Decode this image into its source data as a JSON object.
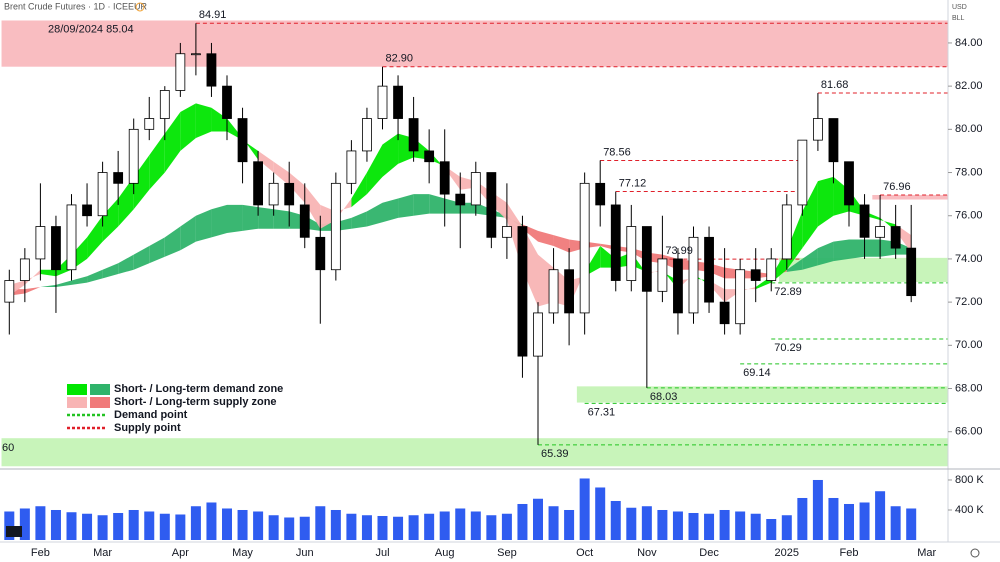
{
  "chart_data": {
    "type": "candlestick",
    "title": "Brent Crude Futures · 1D · ICEEUR",
    "currency": "USD",
    "unit": "BLL",
    "categories": [
      null,
      null,
      "Feb",
      null,
      null,
      null,
      "Mar",
      null,
      null,
      null,
      null,
      "Apr",
      null,
      null,
      null,
      "May",
      null,
      null,
      null,
      "Jun",
      null,
      null,
      null,
      null,
      "Jul",
      null,
      null,
      null,
      "Aug",
      null,
      null,
      null,
      "Sep",
      null,
      null,
      null,
      null,
      "Oct",
      null,
      null,
      null,
      "Nov",
      null,
      null,
      null,
      "Dec",
      null,
      null,
      null,
      null,
      "2025",
      null,
      null,
      null,
      "Feb",
      null,
      null,
      null,
      null,
      "Mar"
    ],
    "open": [
      72.0,
      73.0,
      74.0,
      75.5,
      73.5,
      76.5,
      76.0,
      78.0,
      77.5,
      80.0,
      80.5,
      81.8,
      83.5,
      83.5,
      82.0,
      80.5,
      78.5,
      76.5,
      77.5,
      76.5,
      75.0,
      73.5,
      77.5,
      79.0,
      80.5,
      82.0,
      80.5,
      79.0,
      78.5,
      77.0,
      76.5,
      78.0,
      75.0,
      75.5,
      69.5,
      71.5,
      73.5,
      71.5,
      77.5,
      76.5,
      73.0,
      75.5,
      72.5,
      74.0,
      71.5,
      75.0,
      72.0,
      71.0,
      73.5,
      73.0,
      74.0,
      76.5,
      79.5,
      80.5,
      78.5,
      76.5,
      75.0,
      75.5,
      74.5,
      null
    ],
    "high": [
      73.5,
      74.5,
      77.5,
      76.0,
      77.0,
      77.5,
      78.5,
      79.0,
      80.5,
      81.5,
      82.0,
      84.0,
      84.91,
      84.0,
      82.5,
      81.0,
      79.0,
      78.0,
      78.5,
      77.5,
      76.0,
      78.0,
      79.5,
      81.0,
      82.9,
      82.5,
      81.5,
      80.0,
      80.0,
      78.0,
      78.5,
      78.0,
      77.5,
      76.0,
      72.0,
      74.5,
      74.5,
      78.0,
      78.56,
      77.12,
      76.5,
      75.5,
      76.0,
      74.5,
      75.5,
      75.5,
      74.5,
      74.0,
      74.5,
      74.5,
      77.0,
      79.5,
      81.68,
      80.5,
      78.5,
      77.0,
      76.96,
      76.5,
      76.5,
      null
    ],
    "low": [
      70.5,
      72.0,
      73.0,
      71.5,
      73.0,
      75.5,
      75.5,
      76.5,
      77.0,
      79.5,
      79.5,
      81.5,
      82.5,
      81.5,
      79.5,
      77.5,
      76.0,
      76.0,
      75.5,
      74.5,
      71.0,
      73.0,
      77.0,
      78.5,
      80.0,
      79.5,
      78.5,
      77.5,
      75.5,
      74.5,
      76.0,
      74.5,
      74.0,
      68.5,
      65.39,
      71.0,
      70.0,
      70.5,
      75.5,
      72.5,
      72.5,
      68.03,
      72.0,
      70.5,
      71.0,
      71.5,
      70.5,
      70.5,
      72.0,
      72.5,
      73.5,
      76.0,
      79.0,
      77.5,
      75.5,
      74.0,
      74.0,
      74.0,
      72.0,
      null
    ],
    "close": [
      73.0,
      74.0,
      75.5,
      73.5,
      76.5,
      76.0,
      78.0,
      77.5,
      80.0,
      80.5,
      81.8,
      83.5,
      83.5,
      82.0,
      80.5,
      78.5,
      76.5,
      77.5,
      76.5,
      75.0,
      73.5,
      77.5,
      79.0,
      80.5,
      82.0,
      80.5,
      79.0,
      78.5,
      77.0,
      76.5,
      78.0,
      75.0,
      75.5,
      69.5,
      71.5,
      73.5,
      71.5,
      77.5,
      76.5,
      73.0,
      75.5,
      72.5,
      74.0,
      71.5,
      75.0,
      72.0,
      71.0,
      73.5,
      73.0,
      74.0,
      76.5,
      79.5,
      80.5,
      78.5,
      76.5,
      75.0,
      75.5,
      74.5,
      72.3,
      null
    ],
    "up_color": "#ffffff",
    "down_color": "#000000",
    "short_term_band": {
      "fast": [
        72.3,
        72.8,
        73.5,
        73.5,
        74.2,
        75.0,
        76.0,
        76.8,
        77.8,
        78.8,
        79.8,
        80.8,
        81.2,
        81.0,
        80.5,
        79.6,
        78.6,
        78.0,
        77.4,
        76.6,
        75.4,
        75.8,
        76.8,
        78.0,
        79.3,
        79.8,
        79.6,
        79.0,
        78.2,
        77.2,
        77.3,
        76.5,
        75.8,
        73.5,
        71.8,
        72.0,
        71.8,
        73.4,
        74.6,
        74.0,
        74.3,
        73.3,
        73.5,
        72.6,
        73.3,
        72.8,
        72.0,
        72.5,
        72.7,
        73.2,
        74.4,
        76.2,
        77.6,
        77.8,
        77.2,
        76.2,
        75.9,
        75.3,
        74.3,
        null
      ],
      "slow": [
        72.8,
        73.0,
        73.3,
        73.2,
        73.5,
        74.0,
        74.8,
        75.5,
        76.3,
        77.2,
        78.0,
        79.0,
        79.6,
        79.9,
        79.9,
        79.5,
        79.0,
        78.5,
        78.0,
        77.4,
        76.5,
        76.2,
        76.4,
        77.0,
        77.8,
        78.4,
        78.7,
        78.6,
        78.3,
        77.8,
        77.6,
        77.1,
        76.6,
        75.5,
        74.2,
        73.6,
        73.0,
        73.2,
        73.6,
        73.6,
        73.7,
        73.4,
        73.4,
        73.0,
        73.1,
        73.0,
        72.6,
        72.6,
        72.6,
        72.9,
        73.5,
        74.5,
        75.5,
        76.0,
        76.2,
        76.0,
        75.8,
        75.6,
        75.1,
        null
      ],
      "demand_color": "#00e600",
      "supply_color": "#f8b4b4"
    },
    "long_term_band": {
      "fast": [
        72.3,
        72.4,
        72.7,
        72.8,
        73.0,
        73.2,
        73.5,
        73.8,
        74.2,
        74.6,
        75.0,
        75.5,
        76.0,
        76.3,
        76.5,
        76.5,
        76.4,
        76.3,
        76.2,
        76.0,
        75.6,
        75.7,
        75.9,
        76.2,
        76.6,
        76.8,
        77.0,
        77.0,
        76.8,
        76.6,
        76.6,
        76.3,
        76.0,
        75.4,
        74.8,
        74.6,
        74.3,
        74.5,
        74.6,
        74.4,
        74.3,
        73.9,
        73.8,
        73.5,
        73.5,
        73.4,
        73.1,
        73.1,
        73.1,
        73.2,
        73.5,
        74.0,
        74.5,
        74.8,
        74.9,
        74.9,
        74.9,
        74.8,
        74.5,
        null
      ],
      "slow": [
        72.6,
        72.6,
        72.7,
        72.7,
        72.8,
        72.9,
        73.1,
        73.3,
        73.5,
        73.8,
        74.1,
        74.4,
        74.8,
        75.0,
        75.2,
        75.3,
        75.4,
        75.4,
        75.4,
        75.4,
        75.3,
        75.3,
        75.4,
        75.5,
        75.7,
        75.9,
        76.0,
        76.1,
        76.1,
        76.1,
        76.1,
        76.0,
        75.9,
        75.6,
        75.3,
        75.1,
        74.9,
        74.8,
        74.7,
        74.6,
        74.5,
        74.3,
        74.2,
        74.0,
        73.9,
        73.8,
        73.6,
        73.5,
        73.4,
        73.3,
        73.4,
        73.5,
        73.7,
        73.9,
        74.0,
        74.1,
        74.1,
        74.2,
        74.2,
        null
      ],
      "demand_color": "#2fb36a",
      "supply_color": "#f07a7a"
    },
    "zones": [
      {
        "kind": "supply",
        "low": 82.9,
        "high": 85.04,
        "from": 0,
        "label": "28/09/2024 85.04"
      },
      {
        "kind": "demand",
        "low": 64.4,
        "high": 65.7,
        "from": 0,
        "label": "60"
      },
      {
        "kind": "demand",
        "low": 67.35,
        "high": 68.1,
        "from": 37
      },
      {
        "kind": "demand",
        "low": 72.93,
        "high": 74.05,
        "from": 50
      },
      {
        "kind": "supply",
        "low": 76.75,
        "high": 76.96,
        "from": 56
      }
    ],
    "levels": [
      {
        "kind": "supply",
        "value": 84.91,
        "label": "84.91",
        "from": 12
      },
      {
        "kind": "supply",
        "value": 82.9,
        "label": "82.90",
        "from": 24
      },
      {
        "kind": "supply",
        "value": 81.68,
        "label": "81.68",
        "from": 52
      },
      {
        "kind": "supply",
        "value": 78.56,
        "label": "78.56",
        "from": 38,
        "to": 51
      },
      {
        "kind": "supply",
        "value": 77.12,
        "label": "77.12",
        "from": 39,
        "to": 51
      },
      {
        "kind": "supply",
        "value": 73.99,
        "label": "73.99",
        "from": 42,
        "to": 51
      },
      {
        "kind": "supply",
        "value": 76.96,
        "label": "76.96",
        "from": 56
      },
      {
        "kind": "demand",
        "value": 72.89,
        "label": "72.89",
        "from": 49
      },
      {
        "kind": "demand",
        "value": 70.29,
        "label": "70.29",
        "from": 49
      },
      {
        "kind": "demand",
        "value": 69.14,
        "label": "69.14",
        "from": 47
      },
      {
        "kind": "demand",
        "value": 68.03,
        "label": "68.03",
        "from": 41
      },
      {
        "kind": "demand",
        "value": 67.31,
        "label": "67.31",
        "from": 37
      },
      {
        "kind": "demand",
        "value": 65.39,
        "label": "65.39",
        "from": 34
      }
    ],
    "supply_color": "#e0202a",
    "demand_color": "#22c322",
    "supply_zone_color": "#f8b6ba",
    "demand_zone_color": "#c2f3b2",
    "legend": [
      {
        "text": "Short- / Long-term demand zone",
        "colors": [
          "#00e600",
          "#2fb36a"
        ]
      },
      {
        "text": "Short- / Long-term supply zone",
        "colors": [
          "#f8b4b4",
          "#f07a7a"
        ]
      },
      {
        "text": "Demand point",
        "color": "#22c322"
      },
      {
        "text": "Supply point",
        "color": "#e0202a"
      }
    ],
    "ylim": [
      64.32,
      85.34
    ],
    "yticks": [
      {
        "value": 66,
        "label": "66.00"
      },
      {
        "value": 68,
        "label": "68.00"
      },
      {
        "value": 70,
        "label": "70.00"
      },
      {
        "value": 72,
        "label": "72.00"
      },
      {
        "value": 74,
        "label": "74.00"
      },
      {
        "value": 76,
        "label": "76.00"
      },
      {
        "value": 78,
        "label": "78.00"
      },
      {
        "value": 80,
        "label": "80.00"
      },
      {
        "value": 82,
        "label": "82.00"
      },
      {
        "value": 84,
        "label": "84.00"
      }
    ],
    "volume": [
      380000,
      420000,
      450000,
      400000,
      370000,
      350000,
      330000,
      360000,
      400000,
      380000,
      350000,
      340000,
      450000,
      500000,
      420000,
      400000,
      380000,
      330000,
      300000,
      310000,
      450000,
      400000,
      350000,
      330000,
      320000,
      310000,
      330000,
      350000,
      380000,
      420000,
      380000,
      330000,
      350000,
      480000,
      550000,
      450000,
      400000,
      820000,
      700000,
      520000,
      430000,
      450000,
      400000,
      380000,
      360000,
      350000,
      400000,
      380000,
      350000,
      280000,
      330000,
      560000,
      800000,
      560000,
      480000,
      500000,
      650000,
      450000,
      420000,
      null
    ],
    "volume_color": "#2f5cf0",
    "volume_ylim": [
      0,
      933000
    ],
    "volume_ticks": [
      {
        "value": 400000,
        "label": "400 K"
      },
      {
        "value": 800000,
        "label": "800 K"
      }
    ]
  }
}
